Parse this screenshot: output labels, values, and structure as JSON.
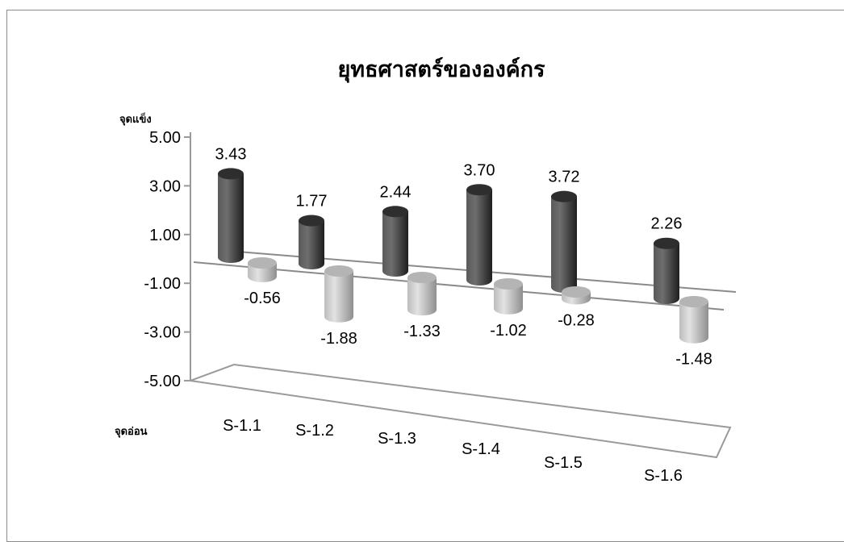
{
  "chart_data": {
    "type": "bar",
    "title": "ยุทธศาสตร์ขององค์กร",
    "ylabel_top": "จุดแข็ง",
    "ylabel_bottom": "จุดอ่อน",
    "categories": [
      "S-1.1",
      "S-1.2",
      "S-1.3",
      "S-1.4",
      "S-1.5",
      "S-1.6"
    ],
    "series": [
      {
        "values": [
          3.43,
          1.77,
          2.44,
          3.7,
          3.72,
          2.26
        ],
        "color": "#404040"
      },
      {
        "values": [
          -0.56,
          -1.88,
          -1.33,
          -1.02,
          -0.28,
          -1.48
        ],
        "color": "#c8c8c8"
      }
    ],
    "data_labels": {
      "positive": [
        "3.43",
        "1.77",
        "2.44",
        "3.70",
        "3.72",
        "2.26"
      ],
      "negative": [
        "-0.56",
        "-1.88",
        "-1.33",
        "-1.02",
        "-0.28",
        "-1.48"
      ]
    },
    "ylim": [
      -5,
      5
    ],
    "yticks": [
      "5.00",
      "3.00",
      "1.00",
      "-1.00",
      "-3.00",
      "-5.00"
    ],
    "ytick_values": [
      5,
      3,
      1,
      -1,
      -3,
      -5
    ],
    "grid": false,
    "legend": "none"
  }
}
